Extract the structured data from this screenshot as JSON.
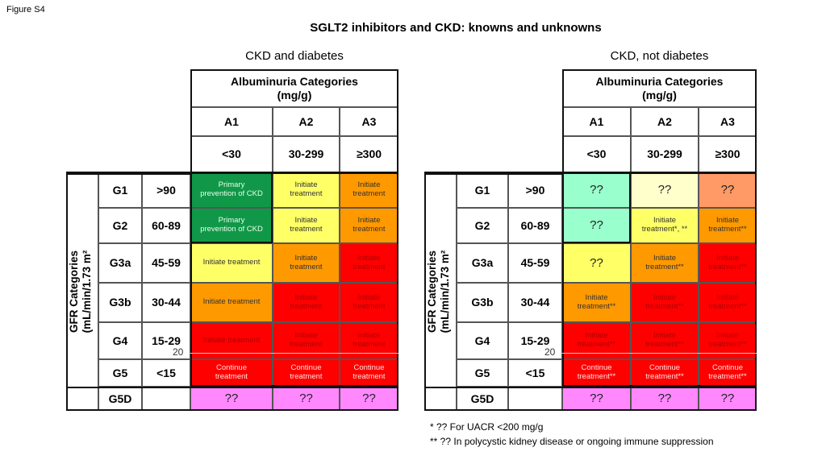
{
  "figure_label": "Figure S4",
  "title": "SGLT2 inhibitors and CKD: knowns and unknowns",
  "tables": [
    {
      "subtitle": "CKD and diabetes",
      "albuminuria_header": "Albuminuria  Categories\n(mg/g)",
      "gfr_label": "GFR Categories\n(mL/min/1.73 m²",
      "columns": [
        {
          "cat": "A1",
          "range": "<30"
        },
        {
          "cat": "A2",
          "range": "30-299"
        },
        {
          "cat": "A3",
          "range": "≥300"
        }
      ],
      "overlay_text": "20",
      "rows": [
        {
          "g": "G1",
          "range": ">90",
          "cells": [
            {
              "text": "Primary\nprevention  of CKD",
              "color": "#109848",
              "fg": "#e8ffe8"
            },
            {
              "text": "Initiate\ntreatment",
              "color": "#ffff66",
              "fg": "#333"
            },
            {
              "text": "Initiate\ntreatment",
              "color": "#ff9900",
              "fg": "#333"
            }
          ]
        },
        {
          "g": "G2",
          "range": "60-89",
          "cells": [
            {
              "text": "Primary\nprevention  of CKD",
              "color": "#109848",
              "fg": "#e8ffe8"
            },
            {
              "text": "Initiate\ntreatment",
              "color": "#ffff66",
              "fg": "#333"
            },
            {
              "text": "Initiate\ntreatment",
              "color": "#ff9900",
              "fg": "#333"
            }
          ]
        },
        {
          "g": "G3a",
          "range": "45-59",
          "cells": [
            {
              "text": "Initiate treatment",
              "color": "#ffff66",
              "fg": "#333"
            },
            {
              "text": "Initiate\ntreatment",
              "color": "#ff9900",
              "fg": "#333"
            },
            {
              "text": "Initiate\ntreatment",
              "color": "#ff0000",
              "fg": "#b00000"
            }
          ]
        },
        {
          "g": "G3b",
          "range": "30-44",
          "cells": [
            {
              "text": "Initiate treatment",
              "color": "#ff9900",
              "fg": "#333"
            },
            {
              "text": "Initiate\ntreatment",
              "color": "#ff0000",
              "fg": "#b00000"
            },
            {
              "text": "Initiate\ntreatment",
              "color": "#ff0000",
              "fg": "#b00000"
            }
          ]
        },
        {
          "g": "G4",
          "range": "15-29",
          "cells": [
            {
              "text": "Initiate treatment",
              "color": "#ff0000",
              "fg": "#b00000"
            },
            {
              "text": "Initiate\ntreatment",
              "color": "#ff0000",
              "fg": "#b00000"
            },
            {
              "text": "Initiate\ntreatment",
              "color": "#ff0000",
              "fg": "#b00000"
            }
          ]
        },
        {
          "g": "G5",
          "range": "<15",
          "cells": [
            {
              "text": "Continue\ntreatment",
              "color": "#ff0000",
              "fg": "#ffe0e0"
            },
            {
              "text": "Continue\ntreatment",
              "color": "#ff0000",
              "fg": "#ffe0e0"
            },
            {
              "text": "Continue\ntreatment",
              "color": "#ff0000",
              "fg": "#ffe0e0"
            }
          ]
        },
        {
          "g": "G5D",
          "range": "",
          "cells": [
            {
              "text": "??",
              "color": "#ff88ff",
              "fg": "#222",
              "q": true
            },
            {
              "text": "??",
              "color": "#ff88ff",
              "fg": "#222",
              "q": true
            },
            {
              "text": "??",
              "color": "#ff88ff",
              "fg": "#222",
              "q": true
            }
          ]
        }
      ]
    },
    {
      "subtitle": "CKD, not diabetes",
      "albuminuria_header": "Albuminuria  Categories\n(mg/g)",
      "gfr_label": "GFR Categories\n(mL/min/1.73 m²",
      "columns": [
        {
          "cat": "A1",
          "range": "<30"
        },
        {
          "cat": "A2",
          "range": "30-299"
        },
        {
          "cat": "A3",
          "range": "≥300"
        }
      ],
      "overlay_text": "20",
      "rows": [
        {
          "g": "G1",
          "range": ">90",
          "cells": [
            {
              "text": "??",
              "color": "#99ffcc",
              "fg": "#222",
              "q": true
            },
            {
              "text": "??",
              "color": "#ffffcc",
              "fg": "#222",
              "q": true
            },
            {
              "text": "??",
              "color": "#ff9966",
              "fg": "#222",
              "q": true
            }
          ]
        },
        {
          "g": "G2",
          "range": "60-89",
          "cells": [
            {
              "text": "??",
              "color": "#99ffcc",
              "fg": "#222",
              "q": true
            },
            {
              "text": "Initiate\ntreatment*, **",
              "color": "#ffff66",
              "fg": "#333"
            },
            {
              "text": "Initiate\ntreatment**",
              "color": "#ff9900",
              "fg": "#333"
            }
          ]
        },
        {
          "g": "G3a",
          "range": "45-59",
          "cells": [
            {
              "text": "??",
              "color": "#ffff66",
              "fg": "#222",
              "q": true
            },
            {
              "text": "Initiate\ntreatment**",
              "color": "#ff9900",
              "fg": "#333"
            },
            {
              "text": "Initiate\ntreatment**",
              "color": "#ff0000",
              "fg": "#b00000"
            }
          ]
        },
        {
          "g": "G3b",
          "range": "30-44",
          "cells": [
            {
              "text": "Initiate\ntreatment**",
              "color": "#ff9900",
              "fg": "#333"
            },
            {
              "text": "Initiate\ntreatment**",
              "color": "#ff0000",
              "fg": "#b00000"
            },
            {
              "text": "Initiate\ntreatment**",
              "color": "#ff0000",
              "fg": "#b00000"
            }
          ]
        },
        {
          "g": "G4",
          "range": "15-29",
          "cells": [
            {
              "text": "Initiate\ntreatment**",
              "color": "#ff0000",
              "fg": "#b00000"
            },
            {
              "text": "Initiate\ntreatment**",
              "color": "#ff0000",
              "fg": "#b00000"
            },
            {
              "text": "Initiate\ntreatment**",
              "color": "#ff0000",
              "fg": "#b00000"
            }
          ]
        },
        {
          "g": "G5",
          "range": "<15",
          "cells": [
            {
              "text": "Continue\ntreatment**",
              "color": "#ff0000",
              "fg": "#ffe0e0"
            },
            {
              "text": "Continue\ntreatment**",
              "color": "#ff0000",
              "fg": "#ffe0e0"
            },
            {
              "text": "Continue\ntreatment**",
              "color": "#ff0000",
              "fg": "#ffe0e0"
            }
          ]
        },
        {
          "g": "G5D",
          "range": "",
          "cells": [
            {
              "text": "??",
              "color": "#ff88ff",
              "fg": "#222",
              "q": true
            },
            {
              "text": "??",
              "color": "#ff88ff",
              "fg": "#222",
              "q": true
            },
            {
              "text": "??",
              "color": "#ff88ff",
              "fg": "#222",
              "q": true
            }
          ]
        }
      ]
    }
  ],
  "footnotes": [
    "* ?? For UACR <200 mg/g",
    "** ?? In polycystic kidney disease or ongoing immune suppression"
  ]
}
